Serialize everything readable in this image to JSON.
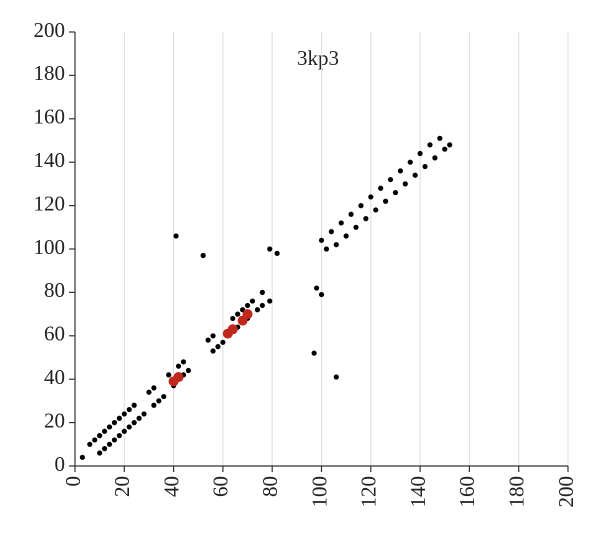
{
  "chart_data": {
    "type": "scatter",
    "title": "3kp3",
    "xlim": [
      0,
      200
    ],
    "ylim": [
      0,
      200
    ],
    "xticks": [
      0,
      20,
      40,
      60,
      80,
      100,
      120,
      140,
      160,
      180,
      200
    ],
    "yticks": [
      0,
      20,
      40,
      60,
      80,
      100,
      120,
      140,
      160,
      180,
      200
    ],
    "grid": true,
    "series": [
      {
        "color": "#000000",
        "x": [
          6,
          8,
          10,
          12,
          14,
          16,
          18,
          20,
          22,
          24,
          10,
          12,
          14,
          16,
          18,
          20,
          22,
          24,
          26,
          28,
          30,
          32,
          38,
          42,
          44,
          32,
          34,
          36,
          40,
          44,
          46,
          54,
          56,
          64,
          66,
          68,
          70,
          72,
          56,
          58,
          60,
          66,
          70,
          74,
          76,
          100,
          104,
          108,
          112,
          116,
          120,
          124,
          128,
          132,
          136,
          140,
          144,
          148,
          102,
          106,
          110,
          114,
          118,
          122,
          126,
          130,
          134,
          138,
          142,
          146,
          150,
          152,
          3,
          41,
          52,
          79,
          82,
          76,
          79,
          98,
          100,
          97,
          106
        ],
        "y": [
          10,
          12,
          14,
          16,
          18,
          20,
          22,
          24,
          26,
          28,
          6,
          8,
          10,
          12,
          14,
          16,
          18,
          20,
          22,
          24,
          34,
          36,
          42,
          46,
          48,
          28,
          30,
          32,
          37,
          42,
          44,
          58,
          60,
          68,
          70,
          72,
          74,
          76,
          53,
          55,
          57,
          64,
          68,
          72,
          74,
          104,
          108,
          112,
          116,
          120,
          124,
          128,
          132,
          136,
          140,
          144,
          148,
          151,
          100,
          102,
          106,
          110,
          114,
          118,
          122,
          126,
          130,
          134,
          138,
          142,
          146,
          148,
          4,
          106,
          97,
          100,
          98,
          80,
          76,
          82,
          79,
          52,
          41
        ]
      },
      {
        "color": "#c0281e",
        "x": [
          40,
          42,
          62,
          64,
          68,
          70
        ],
        "y": [
          39,
          41,
          61,
          63,
          67,
          70
        ]
      }
    ]
  }
}
